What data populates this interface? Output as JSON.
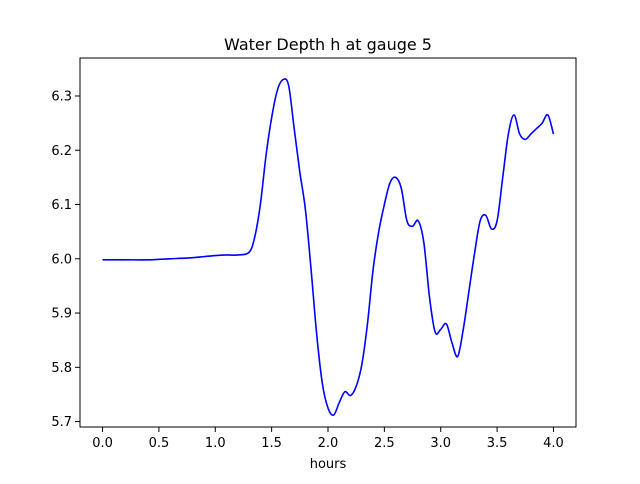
{
  "chart_data": {
    "type": "line",
    "title": "Water Depth h at gauge 5",
    "xlabel": "hours",
    "ylabel": "",
    "xlim": [
      -0.2,
      4.2
    ],
    "ylim": [
      5.69,
      6.37
    ],
    "xticks": [
      0.0,
      0.5,
      1.0,
      1.5,
      2.0,
      2.5,
      3.0,
      3.5,
      4.0
    ],
    "xtick_labels": [
      "0.0",
      "0.5",
      "1.0",
      "1.5",
      "2.0",
      "2.5",
      "3.0",
      "3.5",
      "4.0"
    ],
    "yticks": [
      5.7,
      5.8,
      5.9,
      6.0,
      6.1,
      6.2,
      6.3
    ],
    "ytick_labels": [
      "5.7",
      "5.8",
      "5.9",
      "6.0",
      "6.1",
      "6.2",
      "6.3"
    ],
    "grid": false,
    "series": [
      {
        "color": "#0000ff",
        "x": [
          0.0,
          0.2,
          0.4,
          0.5,
          0.6,
          0.8,
          0.9,
          1.0,
          1.1,
          1.2,
          1.3,
          1.35,
          1.4,
          1.45,
          1.5,
          1.55,
          1.6,
          1.65,
          1.7,
          1.75,
          1.8,
          1.85,
          1.9,
          1.95,
          2.0,
          2.05,
          2.1,
          2.15,
          2.2,
          2.25,
          2.3,
          2.35,
          2.4,
          2.45,
          2.5,
          2.55,
          2.6,
          2.65,
          2.7,
          2.75,
          2.8,
          2.85,
          2.9,
          2.95,
          3.0,
          3.05,
          3.1,
          3.15,
          3.2,
          3.25,
          3.3,
          3.35,
          3.4,
          3.45,
          3.5,
          3.55,
          3.6,
          3.65,
          3.7,
          3.75,
          3.8,
          3.85,
          3.9,
          3.95,
          4.0
        ],
        "y": [
          5.998,
          5.998,
          5.998,
          5.999,
          6.0,
          6.002,
          6.004,
          6.006,
          6.007,
          6.007,
          6.012,
          6.04,
          6.1,
          6.19,
          6.26,
          6.31,
          6.33,
          6.32,
          6.24,
          6.16,
          6.09,
          5.98,
          5.86,
          5.77,
          5.725,
          5.712,
          5.735,
          5.755,
          5.748,
          5.765,
          5.805,
          5.88,
          5.98,
          6.05,
          6.1,
          6.14,
          6.15,
          6.13,
          6.07,
          6.06,
          6.07,
          6.03,
          5.93,
          5.865,
          5.87,
          5.88,
          5.845,
          5.82,
          5.87,
          5.94,
          6.01,
          6.07,
          6.08,
          6.055,
          6.07,
          6.15,
          6.23,
          6.265,
          6.23,
          6.22,
          6.23,
          6.24,
          6.25,
          6.265,
          6.23
        ]
      }
    ]
  }
}
